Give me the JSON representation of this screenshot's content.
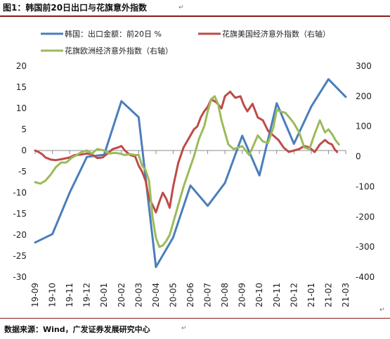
{
  "figure": {
    "title": "图1：韩国前20日出口与花旗意外指数",
    "source": "数据来源：Wind，广发证券发展研究中心",
    "return_mark": "↵"
  },
  "chart_data": {
    "type": "line",
    "title": "图1：韩国前20日出口与花旗意外指数",
    "x_labels": [
      "19-09",
      "19-10",
      "19-11",
      "19-12",
      "20-01",
      "20-02",
      "20-03",
      "20-04",
      "20-05",
      "20-06",
      "20-07",
      "20-08",
      "20-09",
      "20-10",
      "20-11",
      "20-12",
      "21-01",
      "21-02",
      "21-03"
    ],
    "y_left": {
      "min": -30,
      "max": 20,
      "ticks": [
        20,
        15,
        10,
        5,
        0,
        -5,
        -10,
        -15,
        -20,
        -25,
        -30
      ]
    },
    "y_right": {
      "min": -400,
      "max": 300,
      "ticks": [
        300,
        200,
        100,
        0,
        -100,
        -200,
        -300,
        -400
      ]
    },
    "grid": false,
    "legend_position": "top",
    "series": [
      {
        "name": "韩国：出口金额：前20日  %",
        "axis": "left",
        "color": "#4a7ebb",
        "values": [
          -21.8,
          -19.8,
          -10,
          -1.5,
          -1.0,
          11.7,
          7.9,
          -27.6,
          -20.6,
          -8.3,
          -13.1,
          -7.7,
          3.5,
          -5.9,
          11.2,
          1.6,
          10.4,
          16.9,
          12.7
        ]
      },
      {
        "name": "花旗美国经济意外指数（右轴）",
        "axis": "right",
        "color": "#be4b48",
        "x": [
          0,
          0.2,
          0.4,
          0.6,
          0.9,
          1.2,
          1.6,
          2.0,
          2.3,
          2.6,
          3.0,
          3.3,
          3.6,
          3.9,
          4.2,
          4.5,
          4.8,
          5.0,
          5.2,
          5.5,
          5.8,
          6.0,
          6.2,
          6.4,
          6.6,
          6.8,
          7.0,
          7.2,
          7.4,
          7.6,
          7.8,
          8.0,
          8.3,
          8.6,
          9.0,
          9.2,
          9.4,
          9.6,
          9.8,
          10.0,
          10.2,
          10.5,
          10.8,
          11.0,
          11.3,
          11.6,
          11.9,
          12.1,
          12.3,
          12.6,
          12.9,
          13.2,
          13.5,
          13.8,
          14.1,
          14.4,
          14.7,
          15.0,
          15.3,
          15.6,
          15.9,
          16.2,
          16.5,
          16.8,
          17.0,
          17.2,
          17.35,
          17.5
        ],
        "values": [
          20,
          15,
          8,
          -3,
          -10,
          -12,
          -8,
          -3,
          5,
          6,
          10,
          7,
          -5,
          -3,
          10,
          25,
          30,
          35,
          20,
          5,
          0,
          -30,
          -50,
          -80,
          -140,
          -160,
          -185,
          -150,
          -120,
          -140,
          -170,
          -100,
          -20,
          30,
          70,
          90,
          100,
          130,
          150,
          165,
          190,
          180,
          160,
          200,
          215,
          195,
          200,
          170,
          150,
          175,
          130,
          120,
          85,
          70,
          55,
          30,
          15,
          20,
          25,
          35,
          30,
          15,
          40,
          55,
          45,
          40,
          25,
          15
        ]
      },
      {
        "name": "花旗欧洲经济意外指数（右轴）",
        "axis": "right",
        "color": "#9bbb59",
        "x": [
          0,
          0.3,
          0.6,
          0.9,
          1.2,
          1.5,
          1.8,
          2.1,
          2.4,
          2.7,
          3.0,
          3.3,
          3.6,
          4.0,
          4.3,
          4.6,
          4.9,
          5.2,
          5.5,
          5.8,
          6.0,
          6.2,
          6.4,
          6.6,
          6.8,
          7.0,
          7.2,
          7.4,
          7.6,
          7.8,
          8.0,
          8.3,
          8.6,
          8.9,
          9.2,
          9.5,
          9.8,
          10.0,
          10.2,
          10.4,
          10.6,
          10.8,
          11.0,
          11.2,
          11.5,
          11.8,
          12.0,
          12.2,
          12.4,
          12.6,
          12.9,
          13.2,
          13.5,
          13.8,
          14.0,
          14.2,
          14.5,
          14.8,
          15.0,
          15.3,
          15.6,
          15.9,
          16.2,
          16.5,
          16.8,
          17.0,
          17.2,
          17.4,
          17.6
        ],
        "values": [
          -85,
          -90,
          -80,
          -60,
          -35,
          -20,
          -20,
          -5,
          5,
          15,
          20,
          10,
          25,
          20,
          10,
          12,
          10,
          5,
          8,
          5,
          5,
          -30,
          -45,
          -80,
          -200,
          -270,
          -300,
          -295,
          -280,
          -260,
          -220,
          -160,
          -100,
          -50,
          0,
          60,
          100,
          150,
          190,
          200,
          175,
          120,
          80,
          40,
          25,
          30,
          35,
          20,
          5,
          30,
          70,
          50,
          45,
          95,
          155,
          150,
          145,
          125,
          110,
          80,
          30,
          25,
          75,
          120,
          80,
          90,
          75,
          55,
          40
        ]
      }
    ]
  }
}
